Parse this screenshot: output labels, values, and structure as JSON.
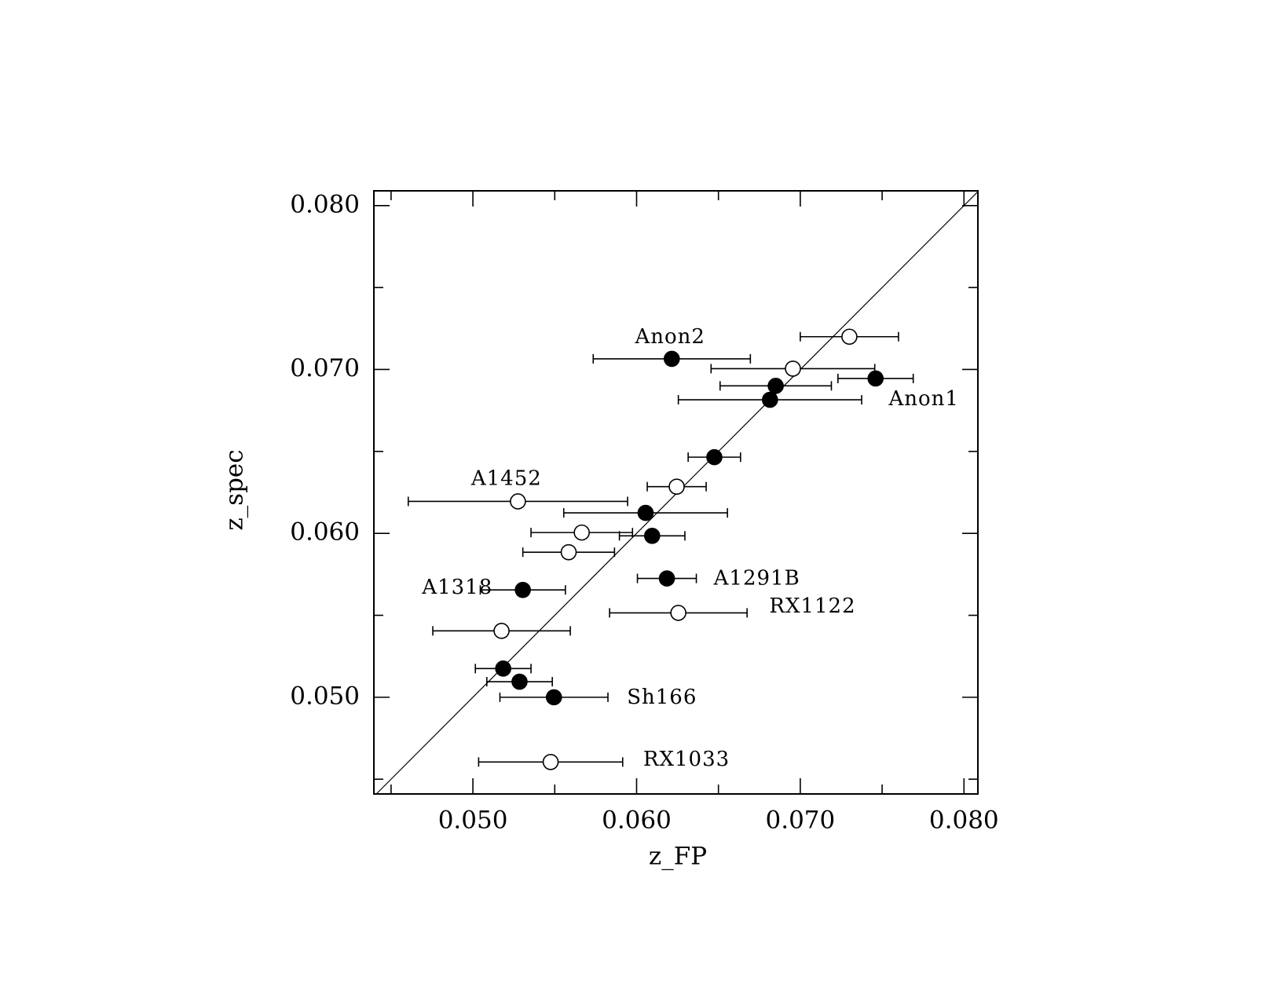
{
  "chart_data": {
    "type": "scatter",
    "xlabel": "z_FP",
    "ylabel": "z_spec",
    "xlim": [
      0.04395,
      0.08085
    ],
    "ylim": [
      0.0441,
      0.0809
    ],
    "xticks": [
      {
        "value": 0.05,
        "label": "0.050"
      },
      {
        "value": 0.06,
        "label": "0.060"
      },
      {
        "value": 0.07,
        "label": "0.070"
      },
      {
        "value": 0.08,
        "label": "0.080"
      }
    ],
    "yticks": [
      {
        "value": 0.05,
        "label": "0.050"
      },
      {
        "value": 0.06,
        "label": "0.060"
      },
      {
        "value": 0.07,
        "label": "0.070"
      },
      {
        "value": 0.08,
        "label": "0.080"
      }
    ],
    "minor_xticks": [
      0.045,
      0.055,
      0.065,
      0.075
    ],
    "minor_yticks": [
      0.045,
      0.055,
      0.065,
      0.075
    ],
    "diagonal": true,
    "series": [
      {
        "marker": "filled",
        "color": "#000000",
        "x": [
          0.06215,
          0.0685,
          0.0746,
          0.06815,
          0.06475,
          0.06055,
          0.06095,
          0.06185,
          0.05305,
          0.05185,
          0.05285,
          0.05495
        ],
        "values": [
          0.07065,
          0.069,
          0.06945,
          0.06815,
          0.06465,
          0.06125,
          0.05985,
          0.05725,
          0.05655,
          0.05175,
          0.05095,
          0.05
        ],
        "xerr": [
          0.0048,
          0.0034,
          0.0023,
          0.0056,
          0.0016,
          0.005,
          0.002,
          0.0018,
          0.0026,
          0.0017,
          0.002,
          0.0033
        ]
      },
      {
        "marker": "open",
        "color": "#000000",
        "x": [
          0.073,
          0.06955,
          0.06245,
          0.05275,
          0.05665,
          0.05585,
          0.06255,
          0.05175,
          0.05475
        ],
        "values": [
          0.072,
          0.07005,
          0.06285,
          0.06195,
          0.06005,
          0.05885,
          0.05515,
          0.05405,
          0.04605
        ],
        "xerr": [
          0.003,
          0.005,
          0.0018,
          0.0067,
          0.0031,
          0.0028,
          0.0042,
          0.0042,
          0.0044
        ]
      }
    ],
    "annotations": [
      {
        "text": "Anon2",
        "x": 0.06205,
        "y": 0.07195
      },
      {
        "text": "Anon1",
        "x": 0.07755,
        "y": 0.06815
      },
      {
        "text": "A1452",
        "x": 0.05205,
        "y": 0.0633
      },
      {
        "text": "A1318",
        "x": 0.04905,
        "y": 0.05665
      },
      {
        "text": "A1291B",
        "x": 0.06735,
        "y": 0.0572
      },
      {
        "text": "RX1122",
        "x": 0.07075,
        "y": 0.0555
      },
      {
        "text": "Sh166",
        "x": 0.06155,
        "y": 0.04995
      },
      {
        "text": "RX1033",
        "x": 0.06305,
        "y": 0.04615
      }
    ]
  }
}
